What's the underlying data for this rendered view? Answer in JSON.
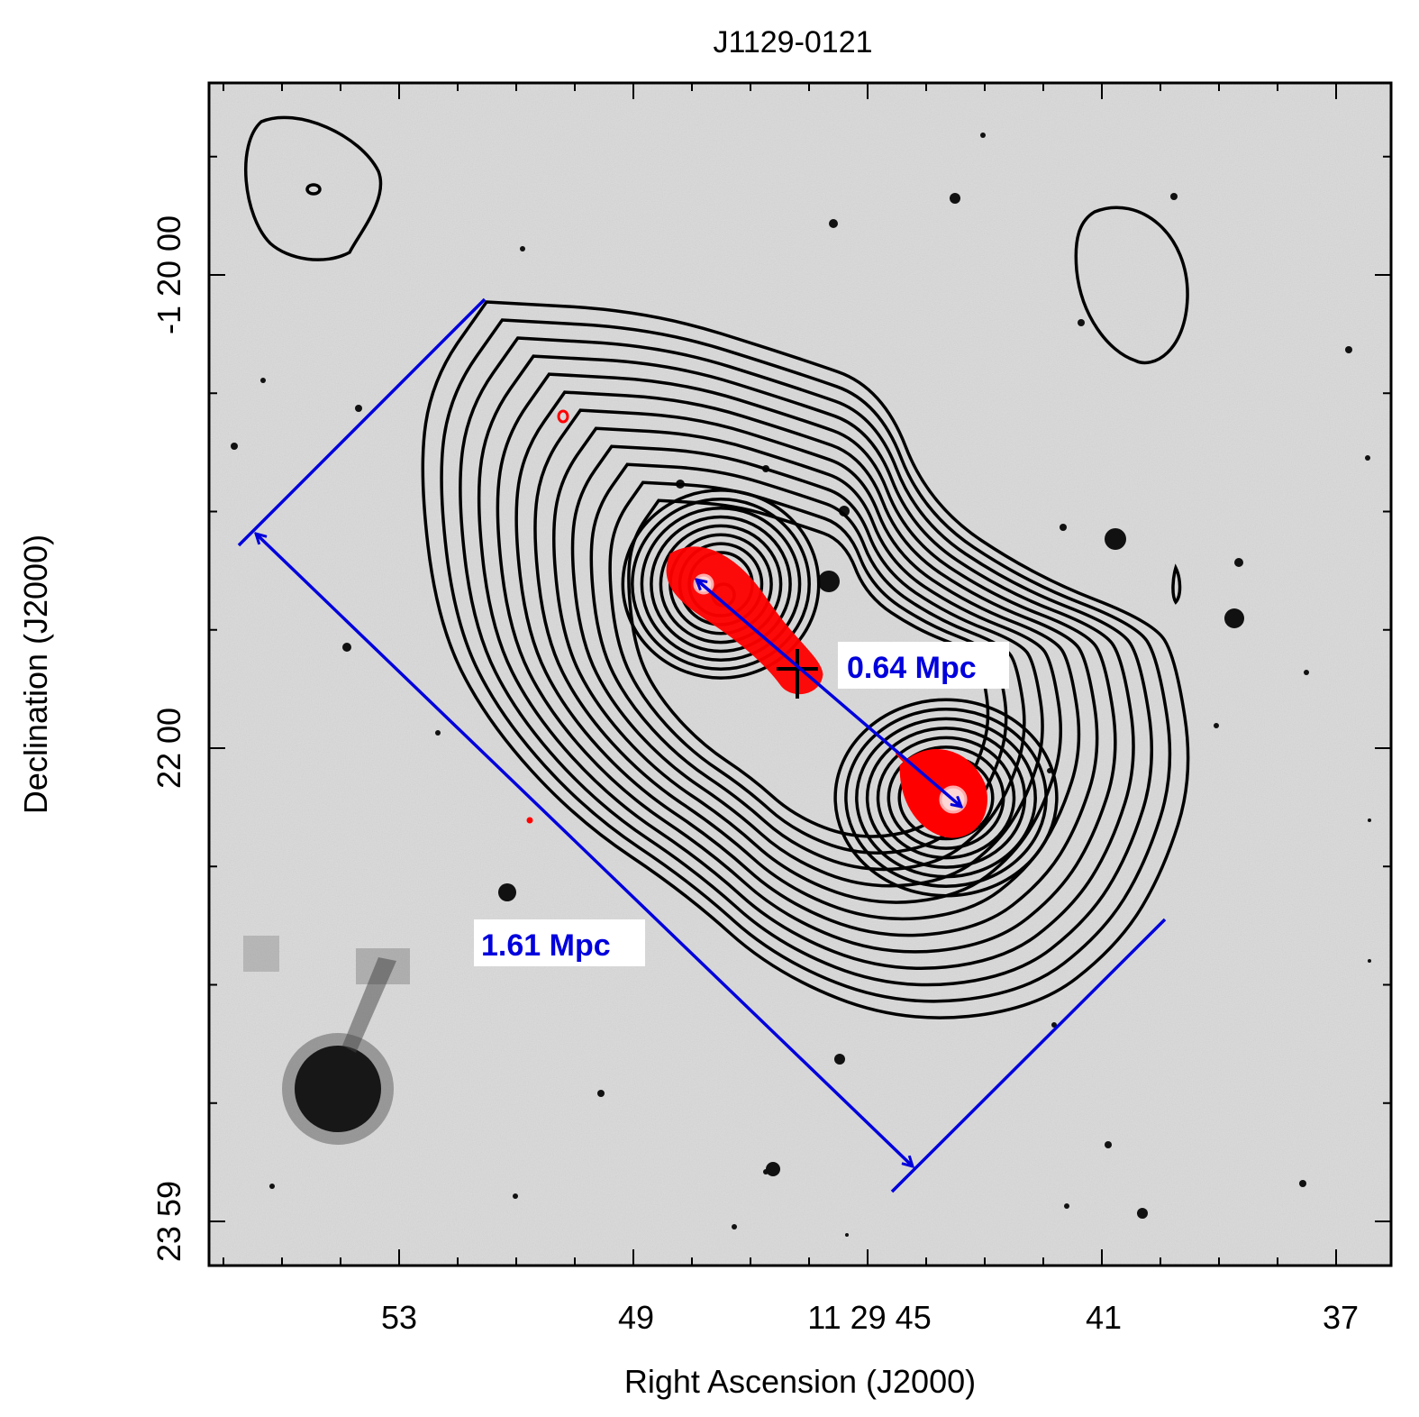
{
  "title": "J1129-0121",
  "axes": {
    "xlabel": "Right Ascension (J2000)",
    "ylabel": "Declination (J2000)",
    "x_ticks": [
      "53",
      "49",
      "11 29 45",
      "41",
      "37"
    ],
    "y_ticks": [
      "-1 20 00",
      "22 00",
      "23 59"
    ]
  },
  "annotations": {
    "inner_scale": "0.64 Mpc",
    "outer_scale": "1.61 Mpc"
  },
  "colors": {
    "background": "#d9d9d9",
    "radio_contours": "#000000",
    "high_res_contours": "#ff0000",
    "scale_markers": "#0000dd",
    "annotation_text": "#0000dd"
  },
  "image": {
    "type": "optical greyscale image with radio contour overlay",
    "host_marker": "plus-cross"
  }
}
